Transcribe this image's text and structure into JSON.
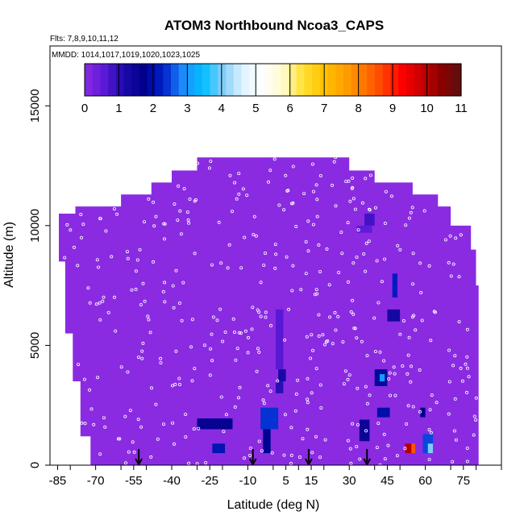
{
  "chart_data": {
    "type": "heatmap",
    "title": "ATOM3 Northbound Ncoa3_CAPS",
    "flights_text": "Flts: 7,8,9,10,11,12",
    "dates_text": "MMDD: 1014,1017,1019,1020,1023,1025",
    "xlabel": "Latitude (deg N)",
    "ylabel": "Altitude (m)",
    "xlim": [
      -88,
      90
    ],
    "ylim": [
      0,
      17500
    ],
    "x_ticks": [
      -85,
      -70,
      -55,
      -40,
      -25,
      -10,
      5,
      15,
      30,
      45,
      60,
      75
    ],
    "x_tick_labels": [
      "-85",
      "-70",
      "-55",
      "-40",
      "-25",
      "-10",
      "5",
      "15",
      "30",
      "45",
      "60",
      "75"
    ],
    "y_ticks": [
      0,
      5000,
      10000,
      15000
    ],
    "y_tick_labels": [
      "0",
      "5000",
      "10000",
      "15000"
    ],
    "colorbar": {
      "min": 0,
      "max": 11,
      "tick_labels": [
        "0",
        "1",
        "2",
        "3",
        "4",
        "5",
        "6",
        "7",
        "8",
        "9",
        "10",
        "11"
      ],
      "colors": [
        "#8a2be2",
        "#5b19d6",
        "#1a0aa8",
        "#00008b",
        "#0022cc",
        "#1e90ff",
        "#00bfff",
        "#87cefa",
        "#e0f4ff",
        "#ffffff",
        "#fffacd",
        "#ffe135",
        "#ffc400",
        "#ffa500",
        "#ff7a00",
        "#ff4500",
        "#ff0000",
        "#c80000",
        "#8b0000",
        "#5a1010"
      ]
    },
    "background_value": 0,
    "envelope": [
      [
        -84.5,
        0
      ],
      [
        -84.5,
        10500
      ],
      [
        -78,
        10500
      ],
      [
        -78,
        10800
      ],
      [
        -60,
        10800
      ],
      [
        -60,
        11300
      ],
      [
        -48,
        11300
      ],
      [
        -48,
        11800
      ],
      [
        -40,
        11800
      ],
      [
        -40,
        12300
      ],
      [
        -30,
        12300
      ],
      [
        -30,
        12850
      ],
      [
        30,
        12850
      ],
      [
        30,
        12300
      ],
      [
        40,
        12300
      ],
      [
        40,
        11800
      ],
      [
        55,
        11800
      ],
      [
        55,
        11300
      ],
      [
        65,
        11300
      ],
      [
        65,
        10800
      ],
      [
        70,
        10800
      ],
      [
        70,
        10000
      ],
      [
        78,
        10000
      ],
      [
        78,
        9000
      ],
      [
        80,
        9000
      ],
      [
        80,
        7500
      ],
      [
        81,
        7500
      ],
      [
        81,
        0
      ],
      [
        -72,
        0
      ],
      [
        -72,
        1200
      ],
      [
        -76,
        1200
      ],
      [
        -76,
        3500
      ],
      [
        -79,
        3500
      ],
      [
        -79,
        5500
      ],
      [
        -82,
        5500
      ],
      [
        -82,
        8500
      ],
      [
        -84.5,
        8500
      ]
    ],
    "cells": [
      {
        "x": [
          -30,
          -16
        ],
        "y": [
          1500,
          1950
        ],
        "v": 1.6
      },
      {
        "x": [
          -24,
          -19
        ],
        "y": [
          500,
          900
        ],
        "v": 2.1
      },
      {
        "x": [
          -5,
          2
        ],
        "y": [
          1500,
          2400
        ],
        "v": 2.4
      },
      {
        "x": [
          -4,
          -1
        ],
        "y": [
          500,
          1500
        ],
        "v": 1.8
      },
      {
        "x": [
          1,
          4
        ],
        "y": [
          3000,
          3500
        ],
        "v": 1.0
      },
      {
        "x": [
          1,
          4
        ],
        "y": [
          4000,
          6500
        ],
        "v": 0.6
      },
      {
        "x": [
          2,
          5
        ],
        "y": [
          3500,
          4000
        ],
        "v": 1.2
      },
      {
        "x": [
          34,
          38
        ],
        "y": [
          1000,
          1900
        ],
        "v": 1.5
      },
      {
        "x": [
          40,
          45
        ],
        "y": [
          3300,
          4000
        ],
        "v": 1.9
      },
      {
        "x": [
          42,
          44
        ],
        "y": [
          3500,
          3800
        ],
        "v": 3.0
      },
      {
        "x": [
          41,
          46
        ],
        "y": [
          2000,
          2400
        ],
        "v": 2.0
      },
      {
        "x": [
          47,
          49
        ],
        "y": [
          7000,
          8000
        ],
        "v": 2.2
      },
      {
        "x": [
          45,
          50
        ],
        "y": [
          6000,
          6500
        ],
        "v": 1.3
      },
      {
        "x": [
          36,
          40
        ],
        "y": [
          10000,
          10500
        ],
        "v": 0.8
      },
      {
        "x": [
          33,
          39
        ],
        "y": [
          9700,
          10000
        ],
        "v": 0.5
      },
      {
        "x": [
          58,
          60
        ],
        "y": [
          2000,
          2400
        ],
        "v": 1.7
      },
      {
        "x": [
          59,
          63
        ],
        "y": [
          500,
          1300
        ],
        "v": 2.5
      },
      {
        "x": [
          61,
          63
        ],
        "y": [
          500,
          900
        ],
        "v": 4.0
      },
      {
        "x": [
          52,
          55
        ],
        "y": [
          500,
          900
        ],
        "v": 10.0
      },
      {
        "x": [
          54.5,
          56
        ],
        "y": [
          500,
          900
        ],
        "v": 8.5
      }
    ],
    "profile_arrows_lat": [
      -53,
      -8,
      14,
      37
    ]
  }
}
